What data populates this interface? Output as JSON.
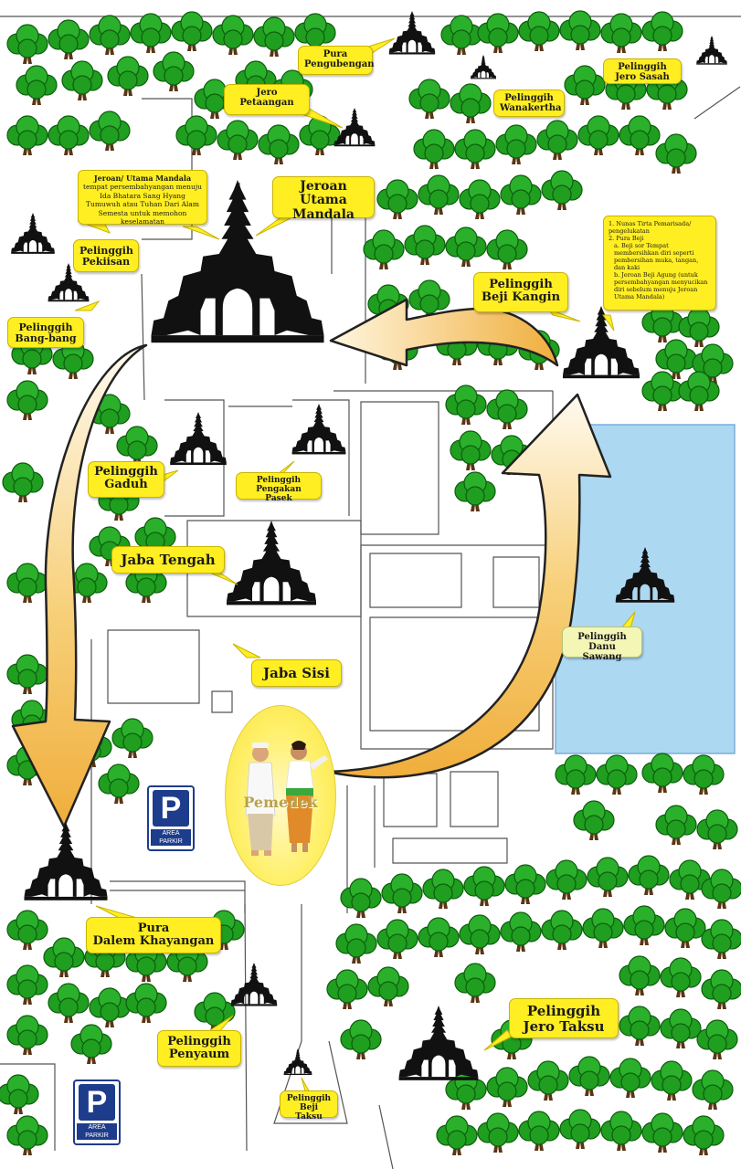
{
  "labels": {
    "pura_pengubengan": [
      "Pura",
      "Pengubengan"
    ],
    "jero_petaangan": [
      "Jero",
      "Petaangan"
    ],
    "pelinggih_jero_sasah": [
      "Pelinggih",
      "Jero Sasah"
    ],
    "pelinggih_wanakertha": [
      "Pelinggih",
      "Wanakertha"
    ],
    "jeroan_utama_mandala": [
      "Jeroan",
      "Utama Mandala"
    ],
    "pelinggih_pekiisan": [
      "Pelinggih",
      "Pekiisan"
    ],
    "pelinggih_bang_bang": [
      "Pelinggih",
      "Bang-bang"
    ],
    "pelinggih_beji_kangin": [
      "Pelinggih",
      "Beji Kangin"
    ],
    "pelinggih_gaduh": [
      "Pelinggih",
      "Gaduh"
    ],
    "pelinggih_pengakan_pasek": [
      "Pelinggih",
      "Pengakan Pasek"
    ],
    "jaba_tengah": [
      "Jaba Tengah"
    ],
    "pelinggih_danu_sawang": [
      "Pelinggih",
      "Danu Sawang"
    ],
    "jaba_sisi": [
      "Jaba Sisi"
    ],
    "pura_dalem_khayangan": [
      "Pura",
      "Dalem Khayangan"
    ],
    "pelinggih_penyaum": [
      "Pelinggih",
      "Penyaum"
    ],
    "pelinggih_jero_taksu": [
      "Pelinggih",
      "Jero Taksu"
    ],
    "pelinggih_beji_taksu": [
      "Pelinggih",
      "Beji Taksu"
    ]
  },
  "jeroan_note": {
    "title": "Jeroan/ Utama Mandala",
    "text": "tempat persembahyangan menuju Ida Bhatara Sang Hyang Tumuwuh atau Tuhan Dari Alam Semesta untuk memohon keselamatan"
  },
  "beji_note": {
    "line1": "1. Nunas Tirta Pemarisada/ pengelukatan",
    "line2": "2. Pura Beji",
    "a": "a. Beji sor Tempat membersihkan diri seperti pembersihan muka, tangan, dan kaki",
    "b": "b. Jeroan Beji Agung (untuk persembahyangan menyucikan diri sebelum menuju Jeroan Utama Mandala)"
  },
  "parking": {
    "letter": "P",
    "text": "AREA PARKIR"
  },
  "pemedek": "Pemedek",
  "colors": {
    "tree": "#1f9e1f",
    "tree_trunk": "#5a3515",
    "lake": "#add8f2",
    "label": "#ffee22",
    "temple": "#111111",
    "arrow": "#f2b440",
    "parking": "#1e3c8c"
  },
  "icons": [
    "tree-icon",
    "temple-gate-icon",
    "parking-icon",
    "flow-arrow-icon"
  ]
}
